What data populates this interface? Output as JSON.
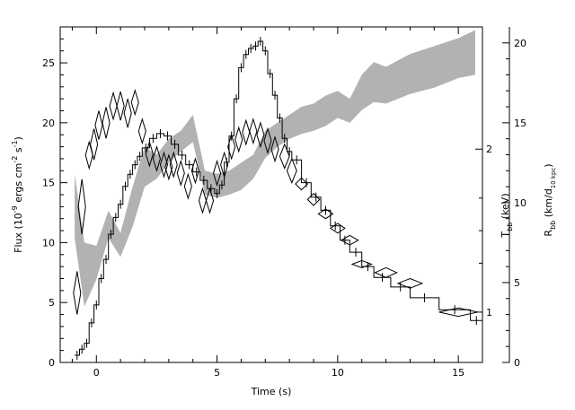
{
  "chart_data": {
    "type": "line",
    "xlabel": "Time (s)",
    "ylabel_left": {
      "main": "Flux (10",
      "sup1": "-9",
      "mid": " ergs cm",
      "sup2": "-2",
      "mid2": " s",
      "sup3": "-1",
      "end": ")"
    },
    "ylabel_right_inner": {
      "main": "T",
      "sub": "bb",
      "end": " (keV)"
    },
    "ylabel_right_outer": {
      "main": "R",
      "sub": "bb",
      "mid": " (km/d",
      "sub2": "10 kpc",
      "end": ")"
    },
    "xlim": [
      -1.5,
      16
    ],
    "ylim_flux": [
      0,
      28
    ],
    "ylim_radius": [
      0,
      21
    ],
    "x_ticks": [
      "0",
      "5",
      "10",
      "15"
    ],
    "y_ticks_flux": [
      "0",
      "5",
      "10",
      "15",
      "20",
      "25"
    ],
    "y_ticks_radius": [
      "0",
      "5",
      "10",
      "15",
      "20"
    ],
    "t_ticks": [
      {
        "label": "1",
        "flux_pos": 4.2
      },
      {
        "label": "2",
        "flux_pos": 17.8
      }
    ],
    "series": [
      {
        "kind": "flux_histogram",
        "color": "#000000",
        "steps": [
          [
            -0.9,
            0.6
          ],
          [
            -0.7,
            1.1
          ],
          [
            -0.5,
            1.6
          ],
          [
            -0.3,
            3.3
          ],
          [
            -0.1,
            4.8
          ],
          [
            0.1,
            7.0
          ],
          [
            0.3,
            8.6
          ],
          [
            0.5,
            10.7
          ],
          [
            0.7,
            12.1
          ],
          [
            0.9,
            13.2
          ],
          [
            1.1,
            14.7
          ],
          [
            1.3,
            15.7
          ],
          [
            1.5,
            16.5
          ],
          [
            1.7,
            17.2
          ],
          [
            1.9,
            17.9
          ],
          [
            2.2,
            18.7
          ],
          [
            2.5,
            19.1
          ],
          [
            2.8,
            18.9
          ],
          [
            3.1,
            18.2
          ],
          [
            3.4,
            17.3
          ],
          [
            3.7,
            16.5
          ],
          [
            4.0,
            15.9
          ],
          [
            4.3,
            15.2
          ],
          [
            4.6,
            14.5
          ],
          [
            4.9,
            14.1
          ],
          [
            5.1,
            14.8
          ],
          [
            5.3,
            16.7
          ],
          [
            5.5,
            18.9
          ],
          [
            5.7,
            22.0
          ],
          [
            5.9,
            24.6
          ],
          [
            6.1,
            25.7
          ],
          [
            6.3,
            26.2
          ],
          [
            6.5,
            26.4
          ],
          [
            6.7,
            26.8
          ],
          [
            6.9,
            26.0
          ],
          [
            7.1,
            24.1
          ],
          [
            7.3,
            22.3
          ],
          [
            7.5,
            20.4
          ],
          [
            7.7,
            18.7
          ],
          [
            7.9,
            17.6
          ],
          [
            8.1,
            16.9
          ],
          [
            8.5,
            15.0
          ],
          [
            8.9,
            13.8
          ],
          [
            9.3,
            12.7
          ],
          [
            9.7,
            11.4
          ],
          [
            10.1,
            10.2
          ],
          [
            10.5,
            9.2
          ],
          [
            11.0,
            8.0
          ],
          [
            11.5,
            7.1
          ],
          [
            12.2,
            6.3
          ],
          [
            13.0,
            5.4
          ],
          [
            14.2,
            4.4
          ],
          [
            15.5,
            3.5
          ]
        ],
        "end_x": 16.0
      },
      {
        "kind": "radius_band",
        "color": "#b2b2b2",
        "points": [
          [
            -0.9,
            7.8,
            11.8
          ],
          [
            -0.5,
            3.5,
            7.5
          ],
          [
            0.0,
            5.2,
            7.3
          ],
          [
            0.5,
            7.8,
            9.5
          ],
          [
            1.0,
            6.6,
            8.1
          ],
          [
            1.5,
            8.5,
            11.0
          ],
          [
            2.0,
            11.0,
            13.5
          ],
          [
            2.5,
            11.5,
            13.0
          ],
          [
            3.0,
            12.5,
            14.0
          ],
          [
            3.5,
            13.2,
            14.5
          ],
          [
            4.0,
            13.8,
            15.5
          ],
          [
            4.5,
            10.5,
            12.0
          ],
          [
            5.0,
            10.3,
            11.8
          ],
          [
            5.5,
            10.5,
            12.0
          ],
          [
            6.0,
            10.8,
            12.5
          ],
          [
            6.5,
            11.5,
            13.0
          ],
          [
            7.0,
            12.8,
            14.5
          ],
          [
            7.5,
            13.5,
            15.0
          ],
          [
            8.0,
            14.0,
            15.5
          ],
          [
            8.5,
            14.3,
            16.0
          ],
          [
            9.0,
            14.5,
            16.2
          ],
          [
            9.5,
            14.8,
            16.7
          ],
          [
            10.0,
            15.3,
            17.0
          ],
          [
            10.5,
            15.0,
            16.5
          ],
          [
            11.0,
            15.8,
            18.0
          ],
          [
            11.5,
            16.3,
            18.8
          ],
          [
            12.0,
            16.2,
            18.5
          ],
          [
            13.0,
            16.8,
            19.3
          ],
          [
            14.0,
            17.2,
            19.8
          ],
          [
            15.0,
            17.8,
            20.3
          ],
          [
            15.7,
            18.0,
            20.8
          ]
        ]
      },
      {
        "kind": "temperature_diamonds",
        "color": "#000000",
        "points": [
          [
            -0.8,
            5.8,
            1.8
          ],
          [
            -0.6,
            13.0,
            2.3
          ],
          [
            -0.3,
            17.3,
            1.1
          ],
          [
            -0.1,
            18.2,
            1.3
          ],
          [
            0.1,
            19.8,
            1.2
          ],
          [
            0.4,
            20.0,
            1.3
          ],
          [
            0.7,
            21.4,
            1.1
          ],
          [
            1.0,
            21.4,
            1.2
          ],
          [
            1.3,
            20.8,
            1.2
          ],
          [
            1.6,
            21.7,
            1.0
          ],
          [
            1.9,
            19.3,
            1.0
          ],
          [
            2.2,
            17.4,
            1.0
          ],
          [
            2.5,
            17.0,
            1.0
          ],
          [
            2.8,
            16.5,
            1.0
          ],
          [
            3.0,
            16.3,
            1.0
          ],
          [
            3.2,
            16.5,
            1.0
          ],
          [
            3.5,
            15.8,
            1.0
          ],
          [
            3.8,
            14.7,
            1.0
          ],
          [
            4.1,
            16.0,
            1.0
          ],
          [
            4.4,
            13.5,
            1.0
          ],
          [
            4.7,
            13.5,
            1.0
          ],
          [
            5.0,
            15.8,
            1.0
          ],
          [
            5.3,
            16.5,
            1.0
          ],
          [
            5.6,
            18.0,
            1.0
          ],
          [
            5.9,
            18.6,
            1.0
          ],
          [
            6.2,
            19.2,
            1.0
          ],
          [
            6.5,
            19.3,
            1.0
          ],
          [
            6.8,
            19.0,
            1.0
          ],
          [
            7.1,
            18.5,
            1.0
          ],
          [
            7.4,
            17.8,
            1.0
          ],
          [
            7.8,
            17.2,
            1.0
          ],
          [
            8.1,
            16.0,
            1.0
          ],
          [
            8.5,
            14.9,
            0.5
          ],
          [
            9.0,
            13.6,
            0.5
          ],
          [
            9.5,
            12.4,
            0.4
          ],
          [
            10.0,
            11.2,
            0.4
          ],
          [
            10.5,
            10.2,
            0.4
          ],
          [
            11.0,
            8.2,
            0.3
          ],
          [
            12.0,
            7.5,
            0.4
          ],
          [
            13.0,
            6.6,
            0.4
          ],
          [
            15.0,
            4.2,
            0.35
          ]
        ],
        "half_widths": [
          0.15,
          0.15,
          0.15,
          0.15,
          0.15,
          0.15,
          0.15,
          0.15,
          0.15,
          0.15,
          0.15,
          0.15,
          0.15,
          0.15,
          0.15,
          0.15,
          0.15,
          0.15,
          0.15,
          0.15,
          0.15,
          0.15,
          0.15,
          0.15,
          0.15,
          0.15,
          0.15,
          0.15,
          0.15,
          0.15,
          0.2,
          0.2,
          0.25,
          0.25,
          0.3,
          0.3,
          0.35,
          0.4,
          0.45,
          0.5,
          0.8
        ]
      }
    ]
  }
}
